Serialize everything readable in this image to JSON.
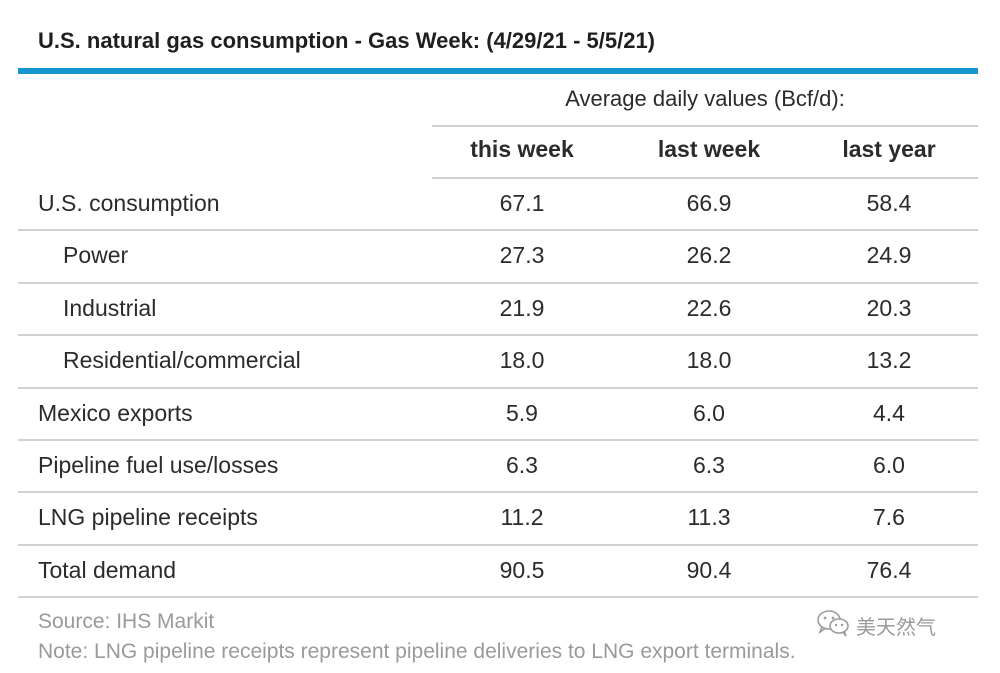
{
  "title": "U.S. natural gas consumption - Gas Week: (4/29/21 - 5/5/21)",
  "colors": {
    "accent_rule": "#1596cf",
    "divider": "#d2d2d2",
    "footnote_text": "#9a9a9a"
  },
  "table": {
    "group_header": "Average daily values (Bcf/d):",
    "columns": [
      "this week",
      "last week",
      "last year"
    ],
    "rows": [
      {
        "label": "U.S. consumption",
        "indent": false,
        "values": [
          "67.1",
          "66.9",
          "58.4"
        ]
      },
      {
        "label": "Power",
        "indent": true,
        "values": [
          "27.3",
          "26.2",
          "24.9"
        ]
      },
      {
        "label": "Industrial",
        "indent": true,
        "values": [
          "21.9",
          "22.6",
          "20.3"
        ]
      },
      {
        "label": "Residential/commercial",
        "indent": true,
        "values": [
          "18.0",
          "18.0",
          "13.2"
        ]
      },
      {
        "label": "Mexico exports",
        "indent": false,
        "values": [
          "5.9",
          "6.0",
          "4.4"
        ]
      },
      {
        "label": "Pipeline fuel use/losses",
        "indent": false,
        "values": [
          "6.3",
          "6.3",
          "6.0"
        ]
      },
      {
        "label": "LNG pipeline receipts",
        "indent": false,
        "values": [
          "11.2",
          "11.3",
          "7.6"
        ]
      },
      {
        "label": "Total demand",
        "indent": false,
        "values": [
          "90.5",
          "90.4",
          "76.4"
        ]
      }
    ]
  },
  "footer": {
    "source": "Source: IHS Markit",
    "note": "Note: LNG pipeline receipts represent pipeline deliveries to LNG export terminals."
  },
  "watermark": {
    "text": "美天然气",
    "icon": "wechat-icon"
  }
}
